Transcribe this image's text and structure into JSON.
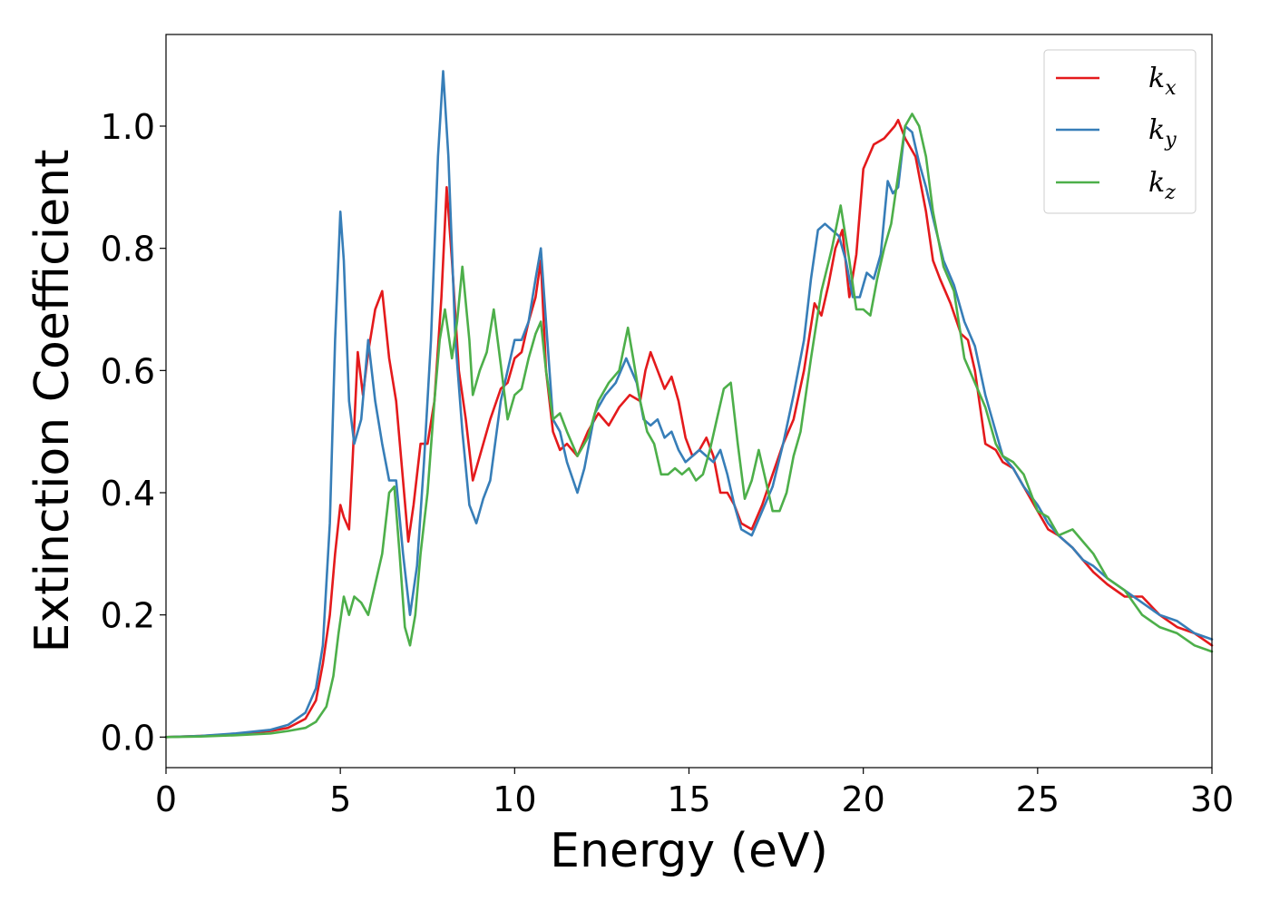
{
  "chart_data": {
    "type": "line",
    "title": "",
    "xlabel": "Energy (eV)",
    "ylabel": "Extinction Coefficient",
    "xlim": [
      0,
      30
    ],
    "ylim": [
      -0.05,
      1.15
    ],
    "xticks": [
      0,
      5,
      10,
      15,
      20,
      25,
      30
    ],
    "xtick_labels": [
      "0",
      "5",
      "10",
      "15",
      "20",
      "25",
      "30"
    ],
    "yticks": [
      0.0,
      0.2,
      0.4,
      0.6,
      0.8,
      1.0
    ],
    "ytick_labels": [
      "0.0",
      "0.2",
      "0.4",
      "0.6",
      "0.8",
      "1.0"
    ],
    "grid": false,
    "legend_position": "top-right",
    "series": [
      {
        "name": "k",
        "subscript": "x",
        "color": "#e41a1c",
        "x": [
          0,
          1,
          2,
          3,
          3.5,
          4,
          4.3,
          4.5,
          4.7,
          4.85,
          5.0,
          5.1,
          5.25,
          5.35,
          5.5,
          5.65,
          5.8,
          6.0,
          6.2,
          6.4,
          6.6,
          6.8,
          6.95,
          7.1,
          7.3,
          7.5,
          7.7,
          7.9,
          8.05,
          8.2,
          8.4,
          8.6,
          8.8,
          9.0,
          9.3,
          9.6,
          9.8,
          10.0,
          10.2,
          10.4,
          10.6,
          10.75,
          10.9,
          11.1,
          11.3,
          11.5,
          11.8,
          12.1,
          12.4,
          12.7,
          13.0,
          13.3,
          13.6,
          13.75,
          13.9,
          14.1,
          14.3,
          14.5,
          14.7,
          14.9,
          15.1,
          15.3,
          15.5,
          15.7,
          15.9,
          16.1,
          16.3,
          16.5,
          16.8,
          17.1,
          17.4,
          17.7,
          18.0,
          18.3,
          18.6,
          18.8,
          19.0,
          19.2,
          19.4,
          19.6,
          19.8,
          20.0,
          20.3,
          20.6,
          20.9,
          21.0,
          21.2,
          21.5,
          21.8,
          22.0,
          22.2,
          22.5,
          22.8,
          23.0,
          23.2,
          23.5,
          23.8,
          24.0,
          24.3,
          24.6,
          25.0,
          25.3,
          25.6,
          26.0,
          26.3,
          26.6,
          27.0,
          27.5,
          28.0,
          28.5,
          29.0,
          29.5,
          30.0
        ],
        "y": [
          0.0,
          0.002,
          0.005,
          0.01,
          0.015,
          0.03,
          0.06,
          0.12,
          0.2,
          0.3,
          0.38,
          0.36,
          0.34,
          0.45,
          0.63,
          0.56,
          0.63,
          0.7,
          0.73,
          0.62,
          0.55,
          0.42,
          0.32,
          0.38,
          0.48,
          0.48,
          0.55,
          0.72,
          0.9,
          0.78,
          0.6,
          0.52,
          0.42,
          0.46,
          0.52,
          0.57,
          0.58,
          0.62,
          0.63,
          0.68,
          0.72,
          0.78,
          0.6,
          0.5,
          0.47,
          0.48,
          0.46,
          0.5,
          0.53,
          0.51,
          0.54,
          0.56,
          0.55,
          0.6,
          0.63,
          0.6,
          0.57,
          0.59,
          0.55,
          0.49,
          0.46,
          0.47,
          0.49,
          0.46,
          0.4,
          0.4,
          0.38,
          0.35,
          0.34,
          0.38,
          0.43,
          0.48,
          0.52,
          0.6,
          0.71,
          0.69,
          0.74,
          0.8,
          0.83,
          0.72,
          0.79,
          0.93,
          0.97,
          0.98,
          1.0,
          1.01,
          0.98,
          0.95,
          0.86,
          0.78,
          0.75,
          0.71,
          0.66,
          0.65,
          0.6,
          0.48,
          0.47,
          0.45,
          0.44,
          0.41,
          0.37,
          0.34,
          0.33,
          0.31,
          0.29,
          0.27,
          0.25,
          0.23,
          0.23,
          0.2,
          0.18,
          0.17,
          0.15
        ]
      },
      {
        "name": "k",
        "subscript": "y",
        "color": "#377eb8",
        "x": [
          0,
          1,
          2,
          3,
          3.5,
          4,
          4.3,
          4.5,
          4.7,
          4.85,
          5.0,
          5.1,
          5.25,
          5.4,
          5.6,
          5.8,
          6.0,
          6.2,
          6.4,
          6.6,
          6.8,
          7.0,
          7.2,
          7.4,
          7.6,
          7.8,
          7.95,
          8.1,
          8.3,
          8.5,
          8.7,
          8.9,
          9.1,
          9.3,
          9.6,
          9.8,
          10.0,
          10.2,
          10.4,
          10.6,
          10.75,
          10.9,
          11.1,
          11.3,
          11.5,
          11.8,
          12.0,
          12.3,
          12.6,
          12.9,
          13.2,
          13.5,
          13.7,
          13.9,
          14.1,
          14.3,
          14.5,
          14.7,
          14.9,
          15.1,
          15.3,
          15.5,
          15.7,
          15.9,
          16.1,
          16.3,
          16.5,
          16.8,
          17.1,
          17.4,
          17.7,
          18.0,
          18.3,
          18.5,
          18.7,
          18.9,
          19.1,
          19.3,
          19.5,
          19.7,
          19.9,
          20.1,
          20.3,
          20.5,
          20.7,
          20.85,
          21.0,
          21.2,
          21.4,
          21.6,
          21.8,
          22.0,
          22.3,
          22.6,
          22.9,
          23.2,
          23.5,
          23.8,
          24.0,
          24.3,
          24.6,
          25.0,
          25.3,
          25.6,
          26.0,
          26.3,
          26.6,
          27.0,
          27.5,
          28.0,
          28.5,
          29.0,
          29.5,
          30.0
        ],
        "y": [
          0.0,
          0.002,
          0.006,
          0.012,
          0.02,
          0.04,
          0.08,
          0.15,
          0.35,
          0.65,
          0.86,
          0.78,
          0.55,
          0.48,
          0.52,
          0.65,
          0.55,
          0.48,
          0.42,
          0.42,
          0.3,
          0.2,
          0.28,
          0.45,
          0.65,
          0.95,
          1.09,
          0.95,
          0.65,
          0.5,
          0.38,
          0.35,
          0.39,
          0.42,
          0.55,
          0.6,
          0.65,
          0.65,
          0.68,
          0.75,
          0.8,
          0.68,
          0.52,
          0.5,
          0.45,
          0.4,
          0.44,
          0.53,
          0.56,
          0.58,
          0.62,
          0.58,
          0.52,
          0.51,
          0.52,
          0.49,
          0.5,
          0.47,
          0.45,
          0.46,
          0.47,
          0.46,
          0.45,
          0.47,
          0.43,
          0.38,
          0.34,
          0.33,
          0.37,
          0.41,
          0.48,
          0.56,
          0.65,
          0.75,
          0.83,
          0.84,
          0.83,
          0.82,
          0.78,
          0.72,
          0.72,
          0.76,
          0.75,
          0.79,
          0.91,
          0.89,
          0.9,
          1.0,
          0.99,
          0.94,
          0.9,
          0.85,
          0.78,
          0.74,
          0.68,
          0.64,
          0.56,
          0.5,
          0.46,
          0.44,
          0.41,
          0.38,
          0.35,
          0.33,
          0.31,
          0.29,
          0.28,
          0.26,
          0.24,
          0.22,
          0.2,
          0.19,
          0.17,
          0.16
        ]
      },
      {
        "name": "k",
        "subscript": "z",
        "color": "#4daf4a",
        "x": [
          0,
          1,
          2,
          3,
          3.5,
          4,
          4.3,
          4.6,
          4.8,
          4.95,
          5.1,
          5.25,
          5.4,
          5.6,
          5.8,
          6.0,
          6.2,
          6.4,
          6.55,
          6.7,
          6.85,
          7.0,
          7.15,
          7.3,
          7.5,
          7.7,
          7.85,
          8.0,
          8.2,
          8.35,
          8.5,
          8.7,
          8.8,
          9.0,
          9.2,
          9.4,
          9.6,
          9.8,
          10.0,
          10.2,
          10.4,
          10.6,
          10.75,
          10.9,
          11.1,
          11.3,
          11.5,
          11.8,
          12.1,
          12.4,
          12.7,
          13.0,
          13.25,
          13.4,
          13.6,
          13.8,
          14.0,
          14.2,
          14.4,
          14.6,
          14.8,
          15.0,
          15.2,
          15.4,
          15.6,
          15.8,
          16.0,
          16.2,
          16.4,
          16.6,
          16.8,
          17.0,
          17.2,
          17.4,
          17.6,
          17.8,
          18.0,
          18.2,
          18.5,
          18.8,
          19.1,
          19.35,
          19.6,
          19.8,
          20.0,
          20.2,
          20.4,
          20.6,
          20.8,
          21.0,
          21.2,
          21.4,
          21.6,
          21.8,
          22.0,
          22.3,
          22.6,
          22.9,
          23.2,
          23.5,
          23.8,
          24.0,
          24.3,
          24.6,
          25.0,
          25.3,
          25.6,
          26.0,
          26.3,
          26.6,
          27.0,
          27.5,
          28.0,
          28.5,
          29.0,
          29.5,
          30.0
        ],
        "y": [
          0.0,
          0.001,
          0.003,
          0.006,
          0.01,
          0.015,
          0.025,
          0.05,
          0.1,
          0.17,
          0.23,
          0.2,
          0.23,
          0.22,
          0.2,
          0.25,
          0.3,
          0.4,
          0.41,
          0.3,
          0.18,
          0.15,
          0.2,
          0.3,
          0.4,
          0.55,
          0.65,
          0.7,
          0.62,
          0.68,
          0.77,
          0.65,
          0.56,
          0.6,
          0.63,
          0.7,
          0.61,
          0.52,
          0.56,
          0.57,
          0.62,
          0.66,
          0.68,
          0.6,
          0.52,
          0.53,
          0.5,
          0.46,
          0.49,
          0.55,
          0.58,
          0.6,
          0.67,
          0.62,
          0.55,
          0.5,
          0.48,
          0.43,
          0.43,
          0.44,
          0.43,
          0.44,
          0.42,
          0.43,
          0.47,
          0.52,
          0.57,
          0.58,
          0.48,
          0.39,
          0.42,
          0.47,
          0.42,
          0.37,
          0.37,
          0.4,
          0.46,
          0.5,
          0.62,
          0.73,
          0.8,
          0.87,
          0.78,
          0.7,
          0.7,
          0.69,
          0.75,
          0.8,
          0.84,
          0.92,
          1.0,
          1.02,
          1.0,
          0.95,
          0.86,
          0.77,
          0.73,
          0.62,
          0.58,
          0.54,
          0.48,
          0.46,
          0.45,
          0.43,
          0.37,
          0.36,
          0.33,
          0.34,
          0.32,
          0.3,
          0.26,
          0.24,
          0.2,
          0.18,
          0.17,
          0.15,
          0.14
        ]
      }
    ]
  }
}
